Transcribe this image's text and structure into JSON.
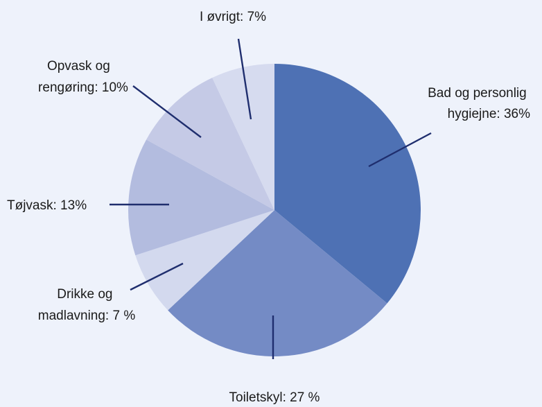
{
  "chart_data": {
    "type": "pie",
    "start": "12 o'clock",
    "direction": "clockwise",
    "slices": [
      {
        "label_lines": [
          "Bad og personlig",
          "hygiejne: 36%"
        ],
        "value": 36,
        "color": "#4e71b4"
      },
      {
        "label_lines": [
          "Toiletskyl: 27 %"
        ],
        "value": 27,
        "color": "#748bc5"
      },
      {
        "label_lines": [
          "Drikke og",
          "madlavning: 7 %"
        ],
        "value": 7,
        "color": "#d3d9ee"
      },
      {
        "label_lines": [
          "Tøjvask: 13%"
        ],
        "value": 13,
        "color": "#b3bcdf"
      },
      {
        "label_lines": [
          "Opvask og",
          "rengøring: 10%"
        ],
        "value": 10,
        "color": "#c5cae6"
      },
      {
        "label_lines": [
          "I øvrigt: 7%"
        ],
        "value": 7,
        "color": "#d6dbef"
      }
    ],
    "leader_line_color": "#1f2e6e",
    "background": "#eef2fb"
  }
}
